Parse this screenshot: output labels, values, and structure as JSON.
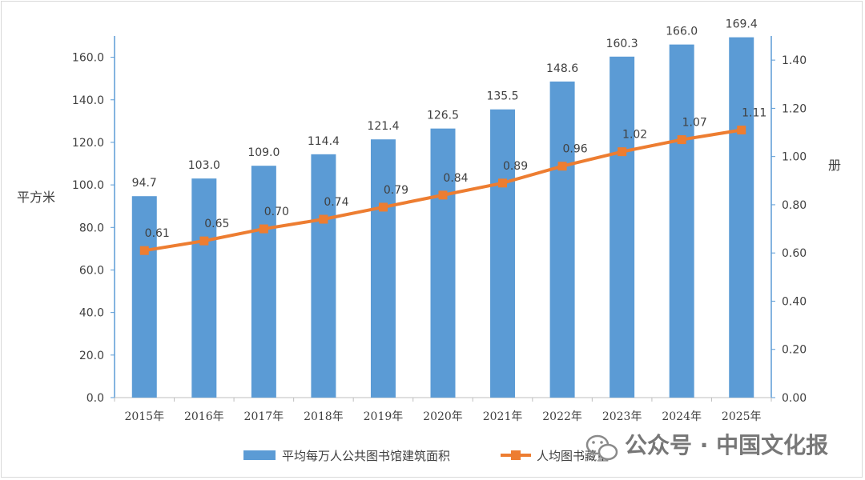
{
  "chart_data": {
    "type": "bar",
    "categories": [
      "2015年",
      "2016年",
      "2017年",
      "2018年",
      "2019年",
      "2020年",
      "2021年",
      "2022年",
      "2023年",
      "2024年",
      "2025年"
    ],
    "series": [
      {
        "name": "平均每万人公共图书馆建筑面积",
        "type": "bar",
        "axis": "left",
        "color": "#5b9bd5",
        "values": [
          94.7,
          103.0,
          109.0,
          114.4,
          121.4,
          126.5,
          135.5,
          148.6,
          160.3,
          166.0,
          169.4
        ],
        "labels": [
          "94.7",
          "103.0",
          "109.0",
          "114.4",
          "121.4",
          "126.5",
          "135.5",
          "148.6",
          "160.3",
          "166.0",
          "169.4"
        ]
      },
      {
        "name": "人均图书藏量",
        "type": "line",
        "axis": "right",
        "color": "#ed7d31",
        "values": [
          0.61,
          0.65,
          0.7,
          0.74,
          0.79,
          0.84,
          0.89,
          0.96,
          1.02,
          1.07,
          1.11
        ],
        "labels": [
          "0.61",
          "0.65",
          "0.70",
          "0.74",
          "0.79",
          "0.84",
          "0.89",
          "0.96",
          "1.02",
          "1.07",
          "1.11"
        ]
      }
    ],
    "ylabel": "平方米",
    "y2label": "册",
    "ylim": [
      0,
      170
    ],
    "y2lim": [
      0,
      1.5
    ],
    "yticks": [
      "0.0",
      "20.0",
      "40.0",
      "60.0",
      "80.0",
      "100.0",
      "120.0",
      "140.0",
      "160.0"
    ],
    "y2ticks": [
      "0.00",
      "0.20",
      "0.40",
      "0.60",
      "0.80",
      "1.00",
      "1.20",
      "1.40"
    ],
    "grid": false,
    "legend_position": "bottom"
  },
  "watermark": {
    "text": "公众号 · 中国文化报",
    "icon": "wechat-icon"
  }
}
